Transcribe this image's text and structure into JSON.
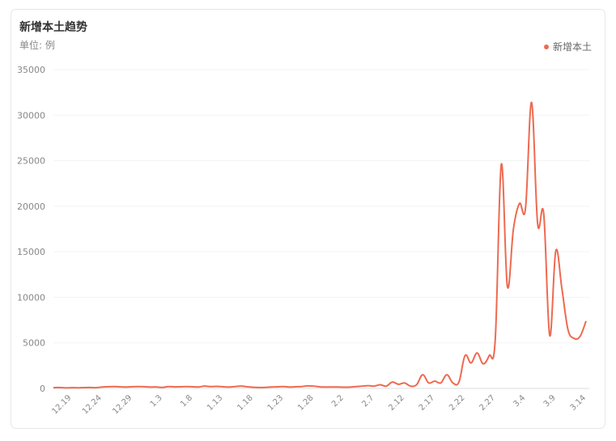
{
  "chart_data": {
    "type": "line",
    "title": "新增本土趋势",
    "subtitle": "单位: 例",
    "categories": [
      null,
      null,
      null,
      "12.19",
      null,
      null,
      null,
      null,
      "12.24",
      null,
      null,
      null,
      null,
      "12.29",
      null,
      null,
      null,
      null,
      "1.3",
      null,
      null,
      null,
      null,
      "1.8",
      null,
      null,
      null,
      null,
      "1.13",
      null,
      null,
      null,
      null,
      "1.18",
      null,
      null,
      null,
      null,
      "1.23",
      null,
      null,
      null,
      null,
      "1.28",
      null,
      null,
      null,
      null,
      "2.2",
      null,
      null,
      null,
      null,
      "2.7",
      null,
      null,
      null,
      null,
      "2.12",
      null,
      null,
      null,
      null,
      "2.17",
      null,
      null,
      null,
      null,
      "2.22",
      null,
      null,
      null,
      null,
      "2.27",
      null,
      null,
      null,
      null,
      "3.4",
      null,
      null,
      null,
      null,
      "3.9",
      null,
      null,
      null,
      null,
      "3.14"
    ],
    "series": [
      {
        "name": "新增本土",
        "color": "#ee6a50",
        "values": [
          80,
          100,
          60,
          80,
          70,
          90,
          100,
          80,
          150,
          180,
          200,
          170,
          150,
          180,
          200,
          190,
          150,
          160,
          110,
          200,
          170,
          180,
          200,
          180,
          160,
          250,
          200,
          220,
          180,
          150,
          200,
          250,
          180,
          120,
          100,
          110,
          150,
          170,
          200,
          150,
          180,
          200,
          280,
          250,
          170,
          150,
          160,
          150,
          130,
          140,
          200,
          250,
          300,
          250,
          400,
          250,
          700,
          450,
          600,
          250,
          400,
          1500,
          600,
          800,
          600,
          1500,
          600,
          700,
          3600,
          2800,
          3900,
          2700,
          3600,
          5400,
          24600,
          11200,
          17500,
          20300,
          19800,
          31400,
          18100,
          19200,
          5800,
          15100,
          11000,
          6500,
          5500,
          5700,
          7400
        ]
      }
    ],
    "ylim": [
      0,
      35000
    ],
    "yticks": [
      0,
      5000,
      10000,
      15000,
      20000,
      25000,
      30000,
      35000
    ],
    "grid": true,
    "legend": "top-right"
  }
}
